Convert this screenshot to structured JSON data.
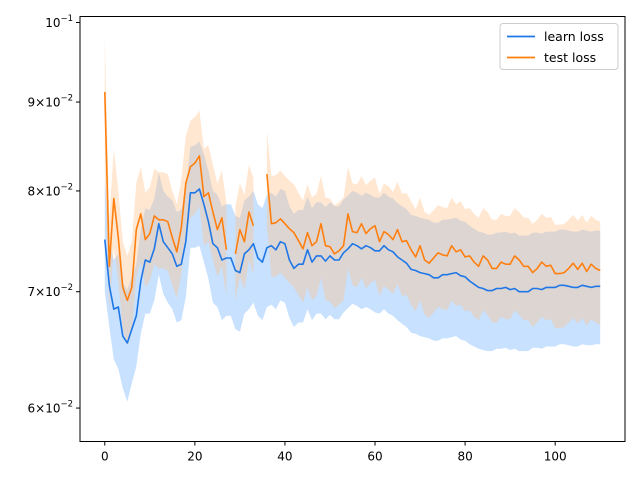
{
  "chart_data": {
    "type": "line",
    "title": "",
    "xlabel": "",
    "ylabel": "",
    "yscale": "log",
    "xlim": [
      -5.5,
      115.5
    ],
    "ylim": [
      0.0574,
      0.1008
    ],
    "grid": false,
    "legend_position": "top-right",
    "x_ticks": [
      0,
      20,
      40,
      60,
      80,
      100
    ],
    "x_tick_labels": [
      "0",
      "20",
      "40",
      "60",
      "80",
      "100"
    ],
    "y_ticks": [
      0.06,
      0.07,
      0.08,
      0.09,
      0.1
    ],
    "y_tick_labels": [
      {
        "mantissa": "6",
        "exponent": "−2"
      },
      {
        "mantissa": "7",
        "exponent": "−2"
      },
      {
        "mantissa": "8",
        "exponent": "−2"
      },
      {
        "mantissa": "9",
        "exponent": "−2"
      },
      {
        "mantissa": "10",
        "exponent": "−1",
        "no_mantissa": true
      }
    ],
    "x_start": 0,
    "x_step": 1,
    "series": [
      {
        "name": "learn loss",
        "color": "#1f77e6",
        "band_color": "#90c4ff",
        "values": [
          0.075,
          0.0706,
          0.0684,
          0.0686,
          0.066,
          0.0654,
          0.0666,
          0.0678,
          0.071,
          0.073,
          0.0728,
          0.0741,
          0.0766,
          0.0748,
          0.0742,
          0.0736,
          0.0724,
          0.0726,
          0.0748,
          0.0798,
          0.0798,
          0.0802,
          0.0786,
          0.0768,
          0.0746,
          0.0742,
          0.073,
          0.0732,
          0.0732,
          0.072,
          0.0718,
          0.0736,
          0.074,
          0.0746,
          0.0732,
          0.0728,
          0.0742,
          0.0744,
          0.074,
          0.0748,
          0.0746,
          0.073,
          0.0722,
          0.0726,
          0.0726,
          0.074,
          0.0728,
          0.0734,
          0.0734,
          0.0729,
          0.0734,
          0.073,
          0.073,
          0.0737,
          0.0741,
          0.0746,
          0.0744,
          0.0741,
          0.0744,
          0.0742,
          0.0739,
          0.0739,
          0.0744,
          0.074,
          0.0738,
          0.0733,
          0.073,
          0.0727,
          0.0721,
          0.072,
          0.0718,
          0.0717,
          0.0716,
          0.0713,
          0.0713,
          0.0716,
          0.0716,
          0.0717,
          0.0718,
          0.0715,
          0.0714,
          0.071,
          0.0707,
          0.0704,
          0.0703,
          0.0701,
          0.0701,
          0.0703,
          0.0703,
          0.0704,
          0.0702,
          0.0703,
          0.07,
          0.07,
          0.07,
          0.0703,
          0.0703,
          0.0702,
          0.0704,
          0.0704,
          0.0704,
          0.0706,
          0.0706,
          0.0705,
          0.0704,
          0.0704,
          0.0706,
          0.0705,
          0.0704,
          0.0705,
          0.0705
        ],
        "lower": [
          0.07,
          0.0668,
          0.064,
          0.0632,
          0.0616,
          0.0605,
          0.062,
          0.0634,
          0.0662,
          0.068,
          0.068,
          0.0692,
          0.0716,
          0.0698,
          0.069,
          0.0684,
          0.0672,
          0.0674,
          0.0695,
          0.0742,
          0.0742,
          0.0744,
          0.0728,
          0.0712,
          0.069,
          0.0686,
          0.0674,
          0.0678,
          0.0678,
          0.0666,
          0.0664,
          0.068,
          0.0684,
          0.069,
          0.0678,
          0.0674,
          0.0686,
          0.0688,
          0.0684,
          0.0692,
          0.069,
          0.0676,
          0.0668,
          0.0672,
          0.0672,
          0.0684,
          0.0674,
          0.068,
          0.068,
          0.0675,
          0.0679,
          0.0675,
          0.0675,
          0.0681,
          0.0685,
          0.0689,
          0.0687,
          0.0684,
          0.0686,
          0.0684,
          0.0681,
          0.068,
          0.0684,
          0.068,
          0.0678,
          0.0674,
          0.0671,
          0.0668,
          0.0663,
          0.0662,
          0.066,
          0.0659,
          0.0658,
          0.0656,
          0.0656,
          0.0658,
          0.0658,
          0.0659,
          0.066,
          0.0657,
          0.0656,
          0.0653,
          0.0651,
          0.0649,
          0.0648,
          0.0647,
          0.0647,
          0.0649,
          0.0649,
          0.065,
          0.0648,
          0.0649,
          0.0647,
          0.0647,
          0.0647,
          0.065,
          0.065,
          0.0649,
          0.0651,
          0.0651,
          0.0651,
          0.0653,
          0.0653,
          0.0652,
          0.0651,
          0.0651,
          0.0653,
          0.0652,
          0.0652,
          0.0653,
          0.0653
        ],
        "upper": [
          0.0812,
          0.0748,
          0.073,
          0.0736,
          0.0708,
          0.0702,
          0.0714,
          0.0726,
          0.076,
          0.0782,
          0.078,
          0.0792,
          0.082,
          0.08,
          0.0794,
          0.079,
          0.0778,
          0.078,
          0.0802,
          0.0848,
          0.085,
          0.0854,
          0.084,
          0.0822,
          0.08,
          0.0796,
          0.0784,
          0.0786,
          0.0786,
          0.0774,
          0.0772,
          0.079,
          0.0794,
          0.08,
          0.0786,
          0.0782,
          0.0796,
          0.0798,
          0.0794,
          0.0802,
          0.08,
          0.0784,
          0.0776,
          0.078,
          0.078,
          0.0794,
          0.0782,
          0.0788,
          0.0788,
          0.0783,
          0.0788,
          0.0784,
          0.0784,
          0.0791,
          0.0795,
          0.08,
          0.0798,
          0.0795,
          0.0798,
          0.0796,
          0.0793,
          0.0793,
          0.0798,
          0.0794,
          0.0792,
          0.0787,
          0.0784,
          0.0781,
          0.0775,
          0.0774,
          0.0772,
          0.0771,
          0.077,
          0.0767,
          0.0767,
          0.077,
          0.077,
          0.0771,
          0.0772,
          0.0769,
          0.0768,
          0.0764,
          0.0761,
          0.0758,
          0.0757,
          0.0755,
          0.0755,
          0.0757,
          0.0757,
          0.0758,
          0.0756,
          0.0757,
          0.0754,
          0.0754,
          0.0754,
          0.0757,
          0.0757,
          0.0756,
          0.0758,
          0.0758,
          0.0758,
          0.076,
          0.076,
          0.0759,
          0.0758,
          0.0758,
          0.076,
          0.0759,
          0.0758,
          0.0759,
          0.0759
        ]
      },
      {
        "name": "test loss",
        "color": "#ff7f0e",
        "band_color": "#ffc48f",
        "values": [
          0.0912,
          0.0724,
          0.0792,
          0.0752,
          0.0704,
          0.0692,
          0.0704,
          0.076,
          0.0776,
          0.075,
          0.0756,
          0.0774,
          0.077,
          0.077,
          0.0768,
          0.0752,
          0.0738,
          0.0762,
          0.0808,
          0.0826,
          0.083,
          0.0838,
          0.0794,
          0.0798,
          0.0778,
          0.076,
          0.0772,
          0.074,
          null,
          0.0736,
          0.076,
          0.0748,
          0.0778,
          0.0764,
          null,
          null,
          0.0818,
          0.0766,
          0.0767,
          0.0771,
          0.0766,
          0.0761,
          0.0757,
          0.0749,
          0.0741,
          0.0757,
          0.0744,
          0.0748,
          0.0766,
          0.0744,
          0.0743,
          0.0736,
          0.0739,
          0.0744,
          0.0776,
          0.0758,
          0.0757,
          0.0766,
          0.0756,
          0.0761,
          0.0764,
          0.0748,
          0.0758,
          0.0755,
          0.075,
          0.076,
          0.0748,
          0.0749,
          0.074,
          0.0733,
          0.0744,
          0.073,
          0.0727,
          0.0732,
          0.0737,
          0.0735,
          0.0734,
          0.0744,
          0.0738,
          0.074,
          0.0733,
          0.0734,
          0.0728,
          0.0724,
          0.0734,
          0.073,
          0.0722,
          0.0722,
          0.0728,
          0.0726,
          0.0726,
          0.0734,
          0.073,
          0.0724,
          0.0724,
          0.0718,
          0.0722,
          0.0728,
          0.0724,
          0.0725,
          0.0717,
          0.0717,
          0.0718,
          0.0722,
          0.0727,
          0.0721,
          0.0727,
          0.0719,
          0.0726,
          0.0722,
          0.072
        ],
        "lower": [
          0.0818,
          0.0682,
          0.0742,
          0.071,
          0.0666,
          0.0652,
          0.0664,
          0.0714,
          0.0728,
          0.0704,
          0.071,
          0.0726,
          0.0722,
          0.0722,
          0.072,
          0.0706,
          0.0694,
          0.0716,
          0.0756,
          0.0772,
          0.0776,
          0.0784,
          0.0744,
          0.0748,
          0.073,
          0.0714,
          0.0724,
          0.0696,
          null,
          0.0692,
          0.0714,
          0.0702,
          0.073,
          0.0716,
          null,
          null,
          0.0764,
          0.0714,
          0.0714,
          0.0718,
          0.0713,
          0.0708,
          0.0704,
          0.0697,
          0.069,
          0.0704,
          0.0692,
          0.0696,
          0.0713,
          0.0692,
          0.0691,
          0.0685,
          0.0688,
          0.0692,
          0.0722,
          0.0706,
          0.0704,
          0.0713,
          0.0703,
          0.0708,
          0.0711,
          0.0696,
          0.0705,
          0.0702,
          0.0698,
          0.0707,
          0.0696,
          0.0697,
          0.0688,
          0.0682,
          0.0692,
          0.0679,
          0.0676,
          0.0681,
          0.0686,
          0.0684,
          0.0683,
          0.0692,
          0.0687,
          0.0688,
          0.0682,
          0.0683,
          0.0677,
          0.0674,
          0.0683,
          0.0679,
          0.0672,
          0.0672,
          0.0677,
          0.0675,
          0.0675,
          0.0683,
          0.0679,
          0.0674,
          0.0674,
          0.0668,
          0.0672,
          0.0677,
          0.0674,
          0.0675,
          0.0667,
          0.0667,
          0.0668,
          0.0672,
          0.0676,
          0.0671,
          0.0676,
          0.0669,
          0.0675,
          0.0672,
          0.067
        ],
        "upper": [
          0.098,
          0.077,
          0.0846,
          0.08,
          0.0748,
          0.0734,
          0.0748,
          0.0808,
          0.0826,
          0.0798,
          0.0804,
          0.0824,
          0.082,
          0.082,
          0.0818,
          0.08,
          0.0786,
          0.0812,
          0.086,
          0.0878,
          0.0882,
          0.089,
          0.0846,
          0.085,
          0.0828,
          0.0808,
          0.0822,
          0.0788,
          null,
          0.0784,
          0.0808,
          0.0796,
          0.0828,
          0.0814,
          null,
          null,
          0.0866,
          0.0816,
          0.0817,
          0.0822,
          0.0816,
          0.0811,
          0.0807,
          0.0798,
          0.079,
          0.0807,
          0.0793,
          0.0797,
          0.0816,
          0.0793,
          0.0792,
          0.0785,
          0.0788,
          0.0793,
          0.0826,
          0.0808,
          0.0807,
          0.0816,
          0.0806,
          0.0811,
          0.0814,
          0.0797,
          0.0808,
          0.0805,
          0.0799,
          0.081,
          0.0797,
          0.0798,
          0.0789,
          0.0781,
          0.0793,
          0.0778,
          0.0775,
          0.078,
          0.0785,
          0.0783,
          0.0782,
          0.0793,
          0.0786,
          0.0789,
          0.0781,
          0.0782,
          0.0776,
          0.0772,
          0.0782,
          0.0778,
          0.077,
          0.077,
          0.0776,
          0.0774,
          0.0774,
          0.0782,
          0.0778,
          0.0772,
          0.0772,
          0.0766,
          0.077,
          0.0776,
          0.0772,
          0.0773,
          0.0765,
          0.0765,
          0.0766,
          0.077,
          0.0775,
          0.0769,
          0.0775,
          0.0767,
          0.0774,
          0.077,
          0.0768
        ]
      }
    ]
  }
}
